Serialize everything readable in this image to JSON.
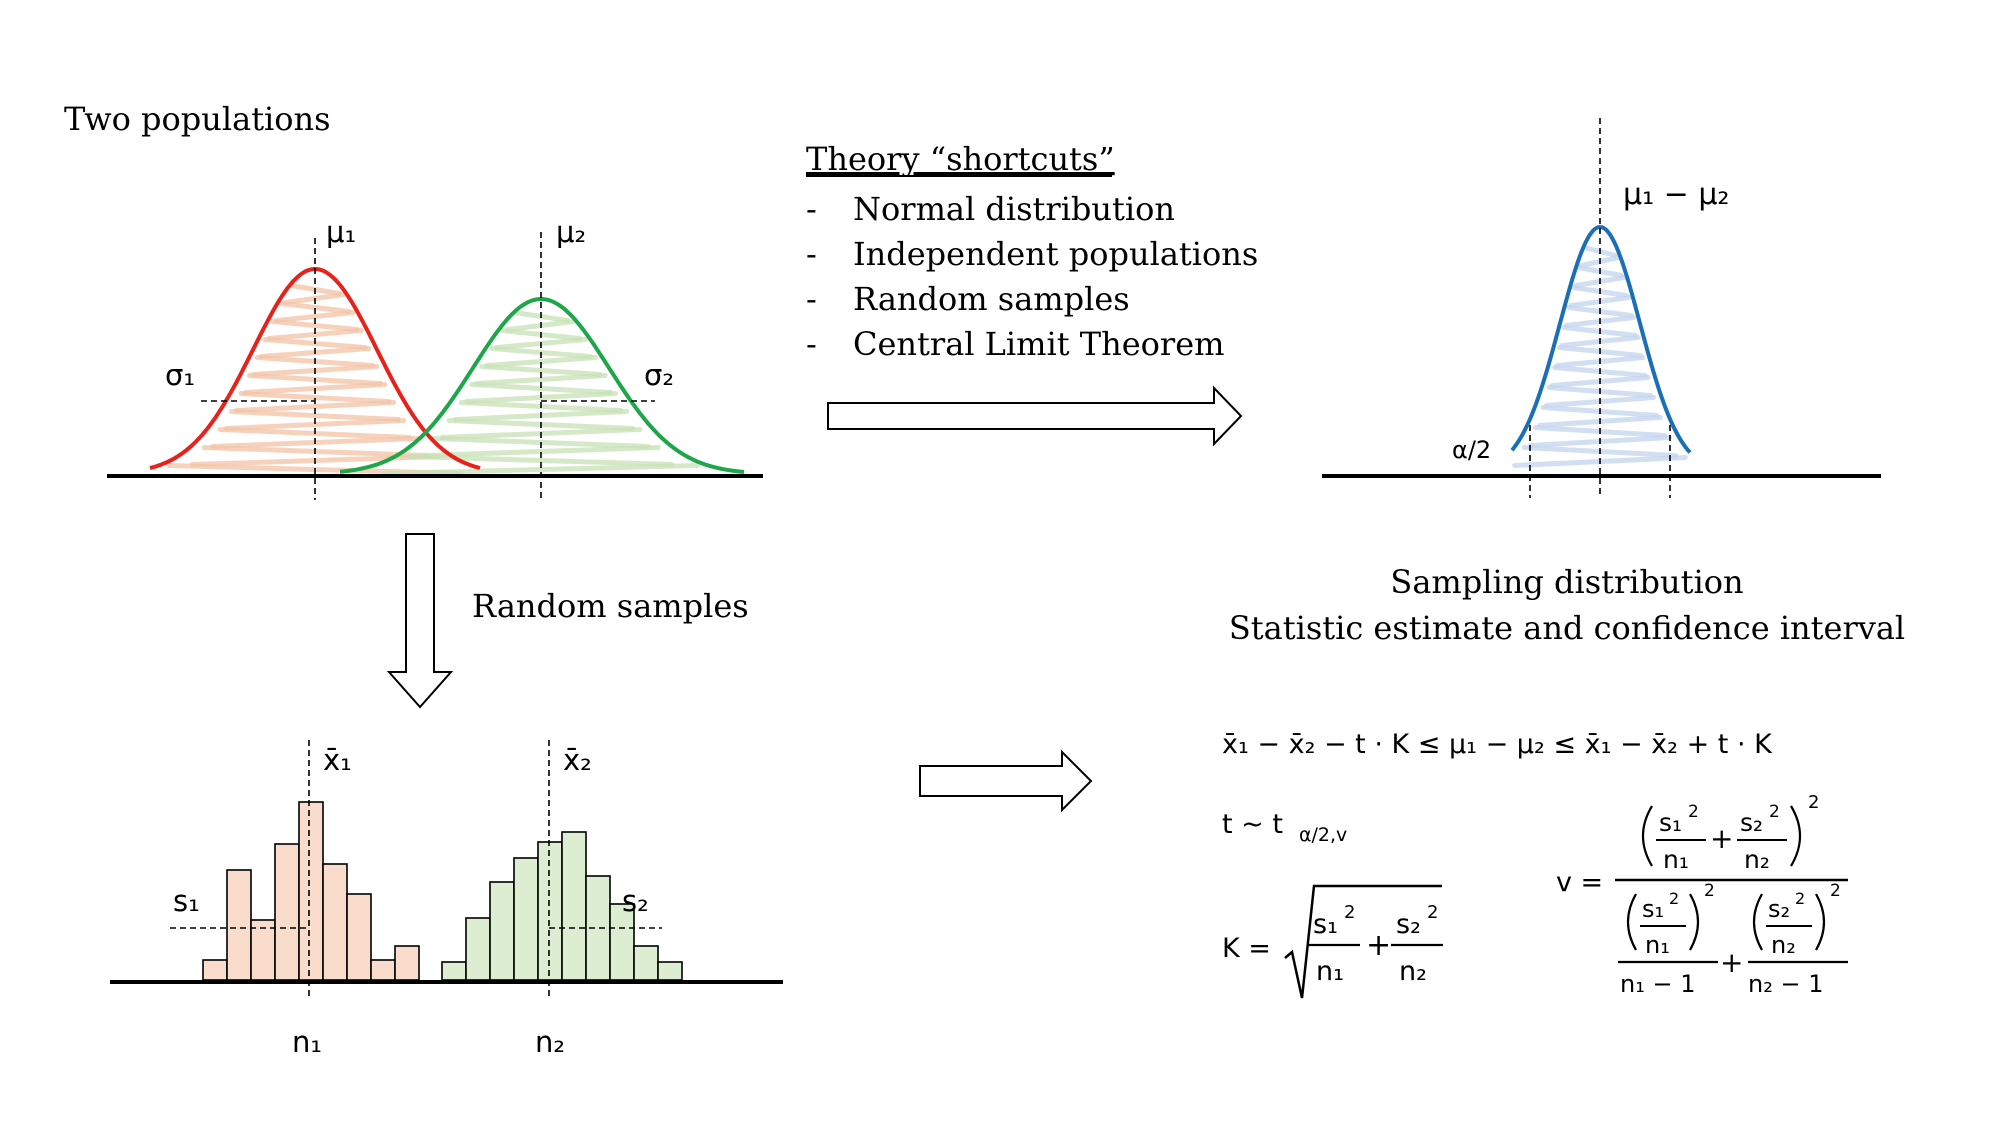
{
  "labels": {
    "two_populations": "Two populations",
    "random_samples": "Random samples",
    "theory_title": "Theory “shortcuts”",
    "sampling_line1": "Sampling distribution",
    "sampling_line2": "Statistic estimate and confidence interval",
    "bullets": [
      "Normal distribution",
      "Independent populations",
      "Random samples",
      "Central Limit Theorem"
    ],
    "bullet_dash": "-"
  },
  "symbols": {
    "mu1": "μ₁",
    "mu2": "μ₂",
    "sigma1": "σ₁",
    "sigma2": "σ₂",
    "xbar1": "x̄₁",
    "xbar2": "x̄₂",
    "s1": "s₁",
    "s2": "s₂",
    "n1": "n₁",
    "n2": "n₂",
    "mu_diff": "μ₁ − μ₂",
    "alpha_half": "α/2"
  },
  "formulas": {
    "ci": "x̄₁ − x̄₂ − t · K  ≤  μ₁ − μ₂ ≤ x̄₁ − x̄₂ + t · K",
    "t_dist": "t ~ t",
    "t_sub": "α/2,v",
    "k_lhs": "K =",
    "v_lhs": "v =",
    "s1sq": "s₁",
    "s2sq": "s₂",
    "sq": "2",
    "n1": "n₁",
    "n2": "n₂",
    "plus": "+",
    "n1m1": "n₁ − 1",
    "n2m1": "n₂ − 1"
  },
  "histograms": {
    "sample1": [
      0.1,
      0.55,
      0.3,
      0.68,
      0.89,
      0.58,
      0.43,
      0.1,
      0.17
    ],
    "sample2": [
      0.09,
      0.31,
      0.49,
      0.61,
      0.69,
      0.74,
      0.52,
      0.38,
      0.17,
      0.09
    ]
  },
  "colors": {
    "pop1": "#e8211a",
    "pop2": "#1ea64a",
    "sampling": "#1b6fb6",
    "hist1_fill": "#f9dccb",
    "hist2_fill": "#dcedd1",
    "hatch1": "#f4c4a8",
    "hatch2": "#c7e2b6",
    "hatch3": "#c3d5ee"
  }
}
